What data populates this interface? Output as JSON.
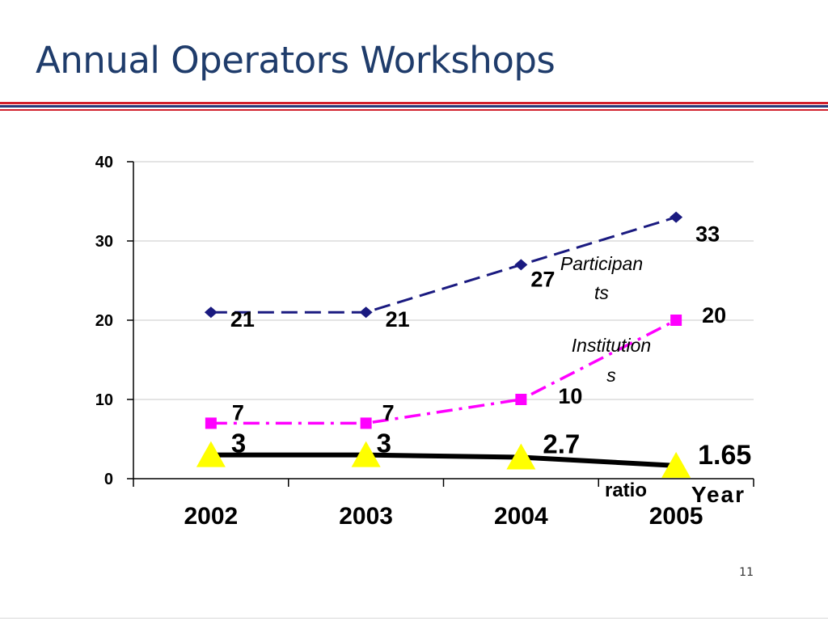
{
  "slide": {
    "title": "Annual Operators Workshops",
    "page_number": "11"
  },
  "chart_data": {
    "type": "line",
    "title": "",
    "xlabel": "Year",
    "ylabel": "",
    "categories": [
      "2002",
      "2003",
      "2004",
      "2005"
    ],
    "ylim": [
      0,
      40
    ],
    "yticks": [
      0,
      10,
      20,
      30,
      40
    ],
    "grid": true,
    "series": [
      {
        "name": "Participants",
        "label_lines": [
          "Participan",
          "ts"
        ],
        "values": [
          21,
          21,
          27,
          33
        ],
        "value_labels": [
          "21",
          "21",
          "27",
          "33"
        ],
        "color": "#1a1a80",
        "marker": "diamond",
        "line_style": "dashed"
      },
      {
        "name": "Institutions",
        "label_lines": [
          "Institution",
          "s"
        ],
        "values": [
          7,
          7,
          10,
          20
        ],
        "value_labels": [
          "7",
          "7",
          "10",
          "20"
        ],
        "color": "#ff00ff",
        "marker": "square",
        "line_style": "dash-dot"
      },
      {
        "name": "ratio",
        "label_lines": [
          "ratio"
        ],
        "values": [
          3,
          3,
          2.7,
          1.65
        ],
        "value_labels": [
          "3",
          "3",
          "2.7",
          "1.65"
        ],
        "color": "#000000",
        "marker": "triangle",
        "marker_color": "#ffff00",
        "line_style": "solid"
      }
    ]
  }
}
